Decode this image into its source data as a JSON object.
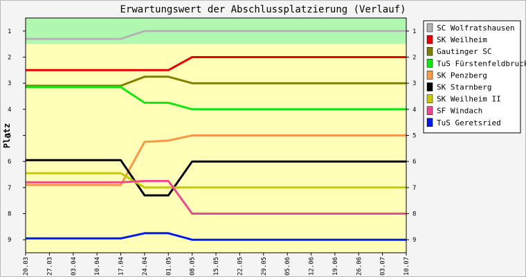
{
  "chart_data": {
    "type": "line",
    "title": "Erwartungswert der Abschlussplatzierung (Verlauf)",
    "xlabel": "",
    "ylabel": "Platz",
    "x": [
      "20.03",
      "27.03",
      "03.04",
      "10.04",
      "17.04",
      "24.04",
      "01.05",
      "08.05",
      "15.05",
      "22.05",
      "29.05",
      "05.06",
      "12.06",
      "19.06",
      "26.06",
      "03.07",
      "10.07"
    ],
    "ylim": [
      0.5,
      9.5
    ],
    "y_inverted": true,
    "y_ticks": [
      1,
      2,
      3,
      4,
      5,
      6,
      7,
      8,
      9
    ],
    "grid": false,
    "legend_position": "right",
    "bands": [
      {
        "from": 0.5,
        "to": 1.5,
        "color": "#b0f8b0"
      },
      {
        "from": 1.5,
        "to": 9.5,
        "color": "#ffffb8"
      }
    ],
    "series": [
      {
        "name": "SC Wolfratshausen",
        "color": "#b4b4b4",
        "values": [
          1.3,
          1.3,
          1.3,
          1.3,
          1.3,
          1.0,
          1.0,
          1.0,
          1.0,
          1.0,
          1.0,
          1.0,
          1.0,
          1.0,
          1.0,
          1.0,
          1.0
        ]
      },
      {
        "name": "SK Weilheim",
        "color": "#e80000",
        "values": [
          2.5,
          2.5,
          2.5,
          2.5,
          2.5,
          2.5,
          2.5,
          2.0,
          2.0,
          2.0,
          2.0,
          2.0,
          2.0,
          2.0,
          2.0,
          2.0,
          2.0
        ]
      },
      {
        "name": "Gautinger SC",
        "color": "#808000",
        "values": [
          3.1,
          3.1,
          3.1,
          3.1,
          3.1,
          2.75,
          2.75,
          3.0,
          3.0,
          3.0,
          3.0,
          3.0,
          3.0,
          3.0,
          3.0,
          3.0,
          3.0
        ]
      },
      {
        "name": "TuS Fürstenfeldbruck",
        "color": "#10e810",
        "values": [
          3.15,
          3.15,
          3.15,
          3.15,
          3.15,
          3.75,
          3.75,
          4.0,
          4.0,
          4.0,
          4.0,
          4.0,
          4.0,
          4.0,
          4.0,
          4.0,
          4.0
        ]
      },
      {
        "name": "SK Penzberg",
        "color": "#f89848",
        "values": [
          6.9,
          6.9,
          6.9,
          6.9,
          6.9,
          5.25,
          5.2,
          5.0,
          5.0,
          5.0,
          5.0,
          5.0,
          5.0,
          5.0,
          5.0,
          5.0,
          5.0
        ]
      },
      {
        "name": "SK Starnberg",
        "color": "#000000",
        "values": [
          5.95,
          5.95,
          5.95,
          5.95,
          5.95,
          7.3,
          7.3,
          6.0,
          6.0,
          6.0,
          6.0,
          6.0,
          6.0,
          6.0,
          6.0,
          6.0,
          6.0
        ]
      },
      {
        "name": "SK Weilheim II",
        "color": "#c8c800",
        "values": [
          6.45,
          6.45,
          6.45,
          6.45,
          6.45,
          7.0,
          7.0,
          7.0,
          7.0,
          7.0,
          7.0,
          7.0,
          7.0,
          7.0,
          7.0,
          7.0,
          7.0
        ]
      },
      {
        "name": "SF Windach",
        "color": "#f04890",
        "values": [
          6.8,
          6.8,
          6.8,
          6.8,
          6.8,
          6.75,
          6.75,
          8.0,
          8.0,
          8.0,
          8.0,
          8.0,
          8.0,
          8.0,
          8.0,
          8.0,
          8.0
        ]
      },
      {
        "name": "TuS Geretsried",
        "color": "#0018f0",
        "values": [
          8.95,
          8.95,
          8.95,
          8.95,
          8.95,
          8.75,
          8.75,
          9.0,
          9.0,
          9.0,
          9.0,
          9.0,
          9.0,
          9.0,
          9.0,
          9.0,
          9.0
        ]
      }
    ]
  }
}
